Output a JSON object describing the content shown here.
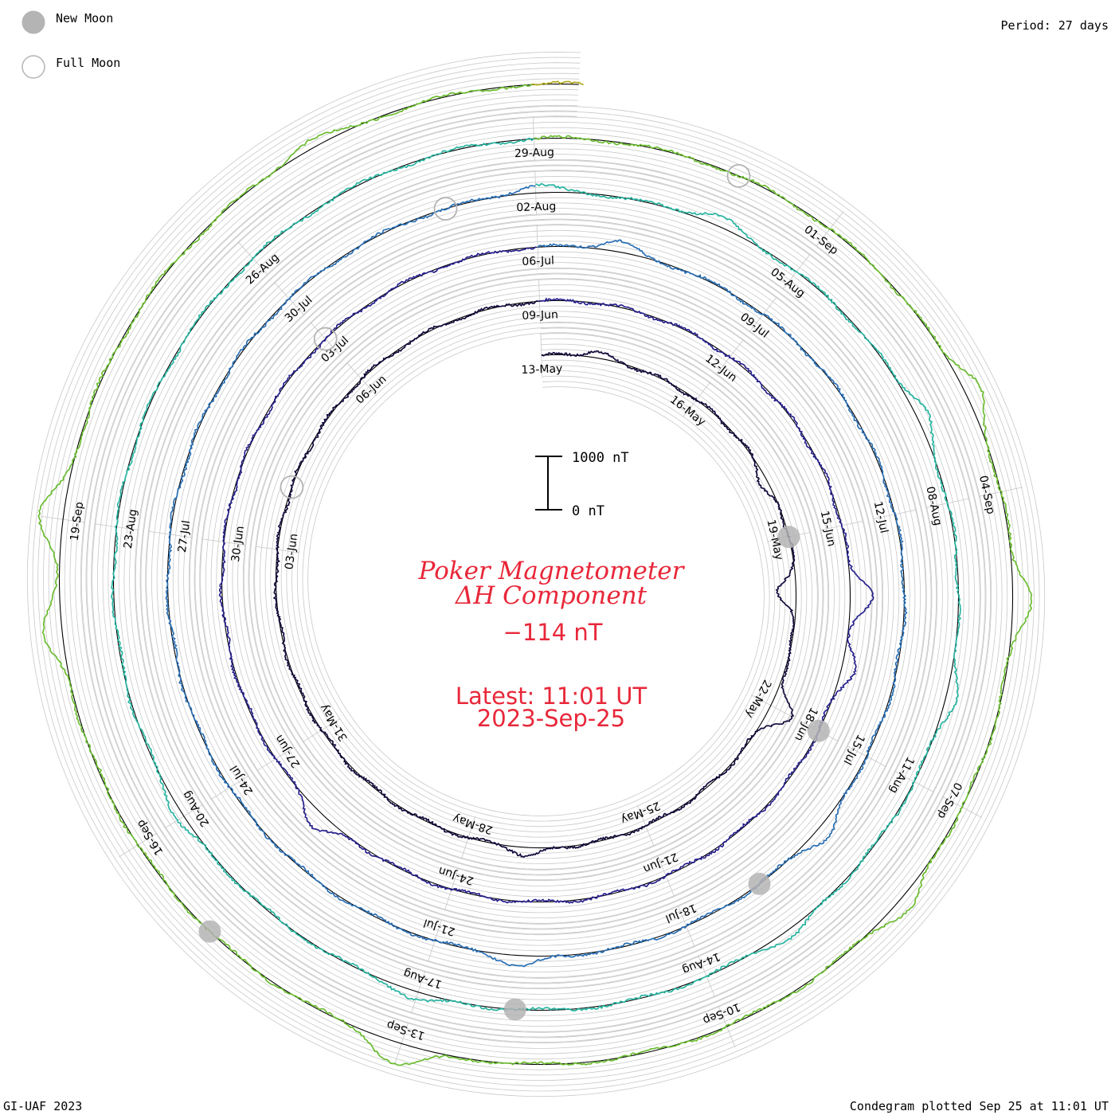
{
  "legend": {
    "new_moon_label": "New Moon",
    "full_moon_label": "Full Moon",
    "new_moon_color": "#b4b4b4",
    "full_moon_color": "#b4b4b4"
  },
  "header": {
    "period_text": "Period: 27 days"
  },
  "footer": {
    "credit_text": "GI-UAF 2023",
    "plotted_text": "Condegram plotted Sep 25 at 11:01 UT"
  },
  "center": {
    "title_line1": "Poker Magnetometer",
    "title_line2": "ΔH Component",
    "current_value": "−114 nT",
    "latest_line": "Latest: 11:01 UT",
    "date_line": "2023-Sep-25"
  },
  "chart_data": {
    "type": "line",
    "subtype": "spiral condegram (polar time series)",
    "period_days": 27,
    "start_date": "2023-05-13",
    "end_date": "2023-09-25",
    "scale_bar": {
      "top_label": "1000 nT",
      "bottom_label": "0 nT",
      "top_value_nT": 1000,
      "bottom_value_nT": 0
    },
    "current_value_nT": -114,
    "rotation_colors": [
      "#120a3a",
      "#28228c",
      "#2a6fb4",
      "#28b4a0",
      "#6cbc32",
      "#b0a81a",
      "#c4780e",
      "#c8401a",
      "#b80e0e"
    ],
    "date_labels": [
      "13-May",
      "16-May",
      "19-May",
      "22-May",
      "25-May",
      "28-May",
      "31-May",
      "03-Jun",
      "06-Jun",
      "09-Jun",
      "12-Jun",
      "15-Jun",
      "18-Jun",
      "21-Jun",
      "24-Jun",
      "27-Jun",
      "30-Jun",
      "03-Jul",
      "06-Jul",
      "09-Jul",
      "12-Jul",
      "15-Jul",
      "18-Jul",
      "21-Jul",
      "24-Jul",
      "27-Jul",
      "30-Jul",
      "02-Aug",
      "05-Aug",
      "08-Aug",
      "11-Aug",
      "14-Aug",
      "17-Aug",
      "20-Aug",
      "23-Aug",
      "26-Aug",
      "29-Aug",
      "01-Sep",
      "04-Sep",
      "07-Sep",
      "10-Sep",
      "13-Sep",
      "16-Sep",
      "19-Sep"
    ],
    "new_moon_dates": [
      "2023-05-19",
      "2023-06-18",
      "2023-07-17",
      "2023-08-16",
      "2023-09-15"
    ],
    "full_moon_dates": [
      "2023-06-04",
      "2023-07-03",
      "2023-08-01",
      "2023-08-31"
    ],
    "disturbances_nT": [
      {
        "date": "2023-05-14",
        "value": 120
      },
      {
        "date": "2023-05-18",
        "value": -150
      },
      {
        "date": "2023-05-20",
        "value": -350
      },
      {
        "date": "2023-05-22",
        "value": 450
      },
      {
        "date": "2023-05-27",
        "value": 160
      },
      {
        "date": "2023-06-16",
        "value": 420
      },
      {
        "date": "2023-06-17",
        "value": 260
      },
      {
        "date": "2023-06-26",
        "value": 300
      },
      {
        "date": "2023-07-07",
        "value": 200
      },
      {
        "date": "2023-07-16",
        "value": 250
      },
      {
        "date": "2023-07-20",
        "value": 200
      },
      {
        "date": "2023-08-02",
        "value": 150
      },
      {
        "date": "2023-08-04",
        "value": 200
      },
      {
        "date": "2023-08-07",
        "value": 220
      },
      {
        "date": "2023-08-10",
        "value": 200
      },
      {
        "date": "2023-08-13",
        "value": 150
      },
      {
        "date": "2023-08-17",
        "value": 150
      },
      {
        "date": "2023-08-20",
        "value": 150
      },
      {
        "date": "2023-09-03",
        "value": 300
      },
      {
        "date": "2023-09-05",
        "value": 350
      },
      {
        "date": "2023-09-08",
        "value": 250
      },
      {
        "date": "2023-09-13",
        "value": 400
      },
      {
        "date": "2023-09-18",
        "value": 350
      },
      {
        "date": "2023-09-19",
        "value": 450
      },
      {
        "date": "2023-09-23",
        "value": 150
      }
    ]
  }
}
